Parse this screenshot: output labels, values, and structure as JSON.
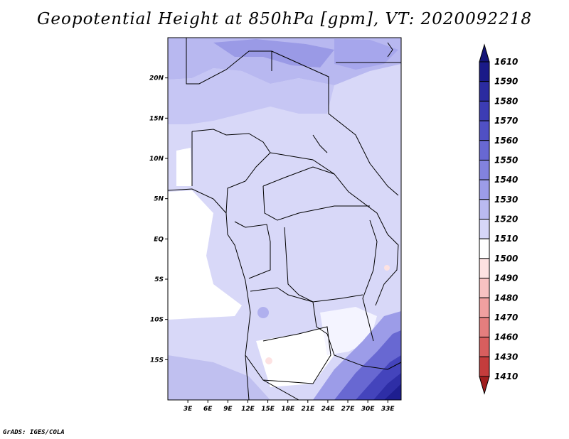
{
  "title": "Geopotential Height at 850hPa [gpm], VT: 2020092218",
  "credit": "GrADS: IGES/COLA",
  "map": {
    "lon_range": [
      0,
      35
    ],
    "lat_range": [
      -20,
      25
    ],
    "xticks": [
      "3E",
      "6E",
      "9E",
      "12E",
      "15E",
      "18E",
      "21E",
      "24E",
      "27E",
      "30E",
      "33E"
    ],
    "xtick_lons": [
      3,
      6,
      9,
      12,
      15,
      18,
      21,
      24,
      27,
      30,
      33
    ],
    "yticks": [
      "20N",
      "15N",
      "10N",
      "5N",
      "EQ",
      "5S",
      "10S",
      "15S"
    ],
    "ytick_lats": [
      20,
      15,
      10,
      5,
      0,
      -5,
      -10,
      -15
    ]
  },
  "colorbar": {
    "labels": [
      "1610",
      "1590",
      "1580",
      "1570",
      "1560",
      "1550",
      "1540",
      "1530",
      "1520",
      "1510",
      "1500",
      "1490",
      "1480",
      "1470",
      "1460",
      "1430",
      "1410"
    ],
    "colors": [
      "#1a1a88",
      "#2b2ba0",
      "#3c3cb4",
      "#5050c4",
      "#6868d2",
      "#8282de",
      "#9c9ce8",
      "#babaf0",
      "#d6d6f8",
      "#ffffff",
      "#fde2e2",
      "#f8c2c2",
      "#f0a0a0",
      "#e47e7e",
      "#d85e5e",
      "#c43c3c",
      "#a82424"
    ],
    "top_color": "#141478",
    "bottom_color": "#a01e1e"
  }
}
